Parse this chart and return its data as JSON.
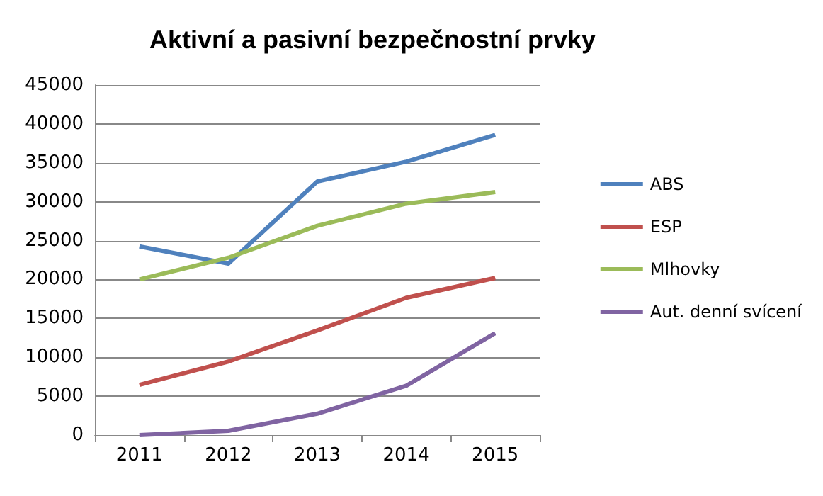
{
  "chart_data": {
    "type": "line",
    "title": "Aktivní a pasivní bezpečnostní prvky",
    "categories": [
      "2011",
      "2012",
      "2013",
      "2014",
      "2015"
    ],
    "series": [
      {
        "name": "ABS",
        "color": "#4f81bd",
        "values": [
          24250,
          22050,
          32600,
          35150,
          38600
        ]
      },
      {
        "name": "ESP",
        "color": "#c0504d",
        "values": [
          6450,
          9450,
          13450,
          17650,
          20200
        ]
      },
      {
        "name": "Mlhovky",
        "color": "#9bbb59",
        "values": [
          20000,
          22800,
          26900,
          29750,
          31250
        ]
      },
      {
        "name": "Aut. denní svícení",
        "color": "#8064a2",
        "values": [
          0,
          550,
          2750,
          6350,
          13100
        ]
      }
    ],
    "ylim": [
      0,
      45000
    ],
    "yticks": [
      0,
      5000,
      10000,
      15000,
      20000,
      25000,
      30000,
      35000,
      40000,
      45000
    ],
    "grid": "y",
    "legend": "right",
    "marker": "none"
  }
}
